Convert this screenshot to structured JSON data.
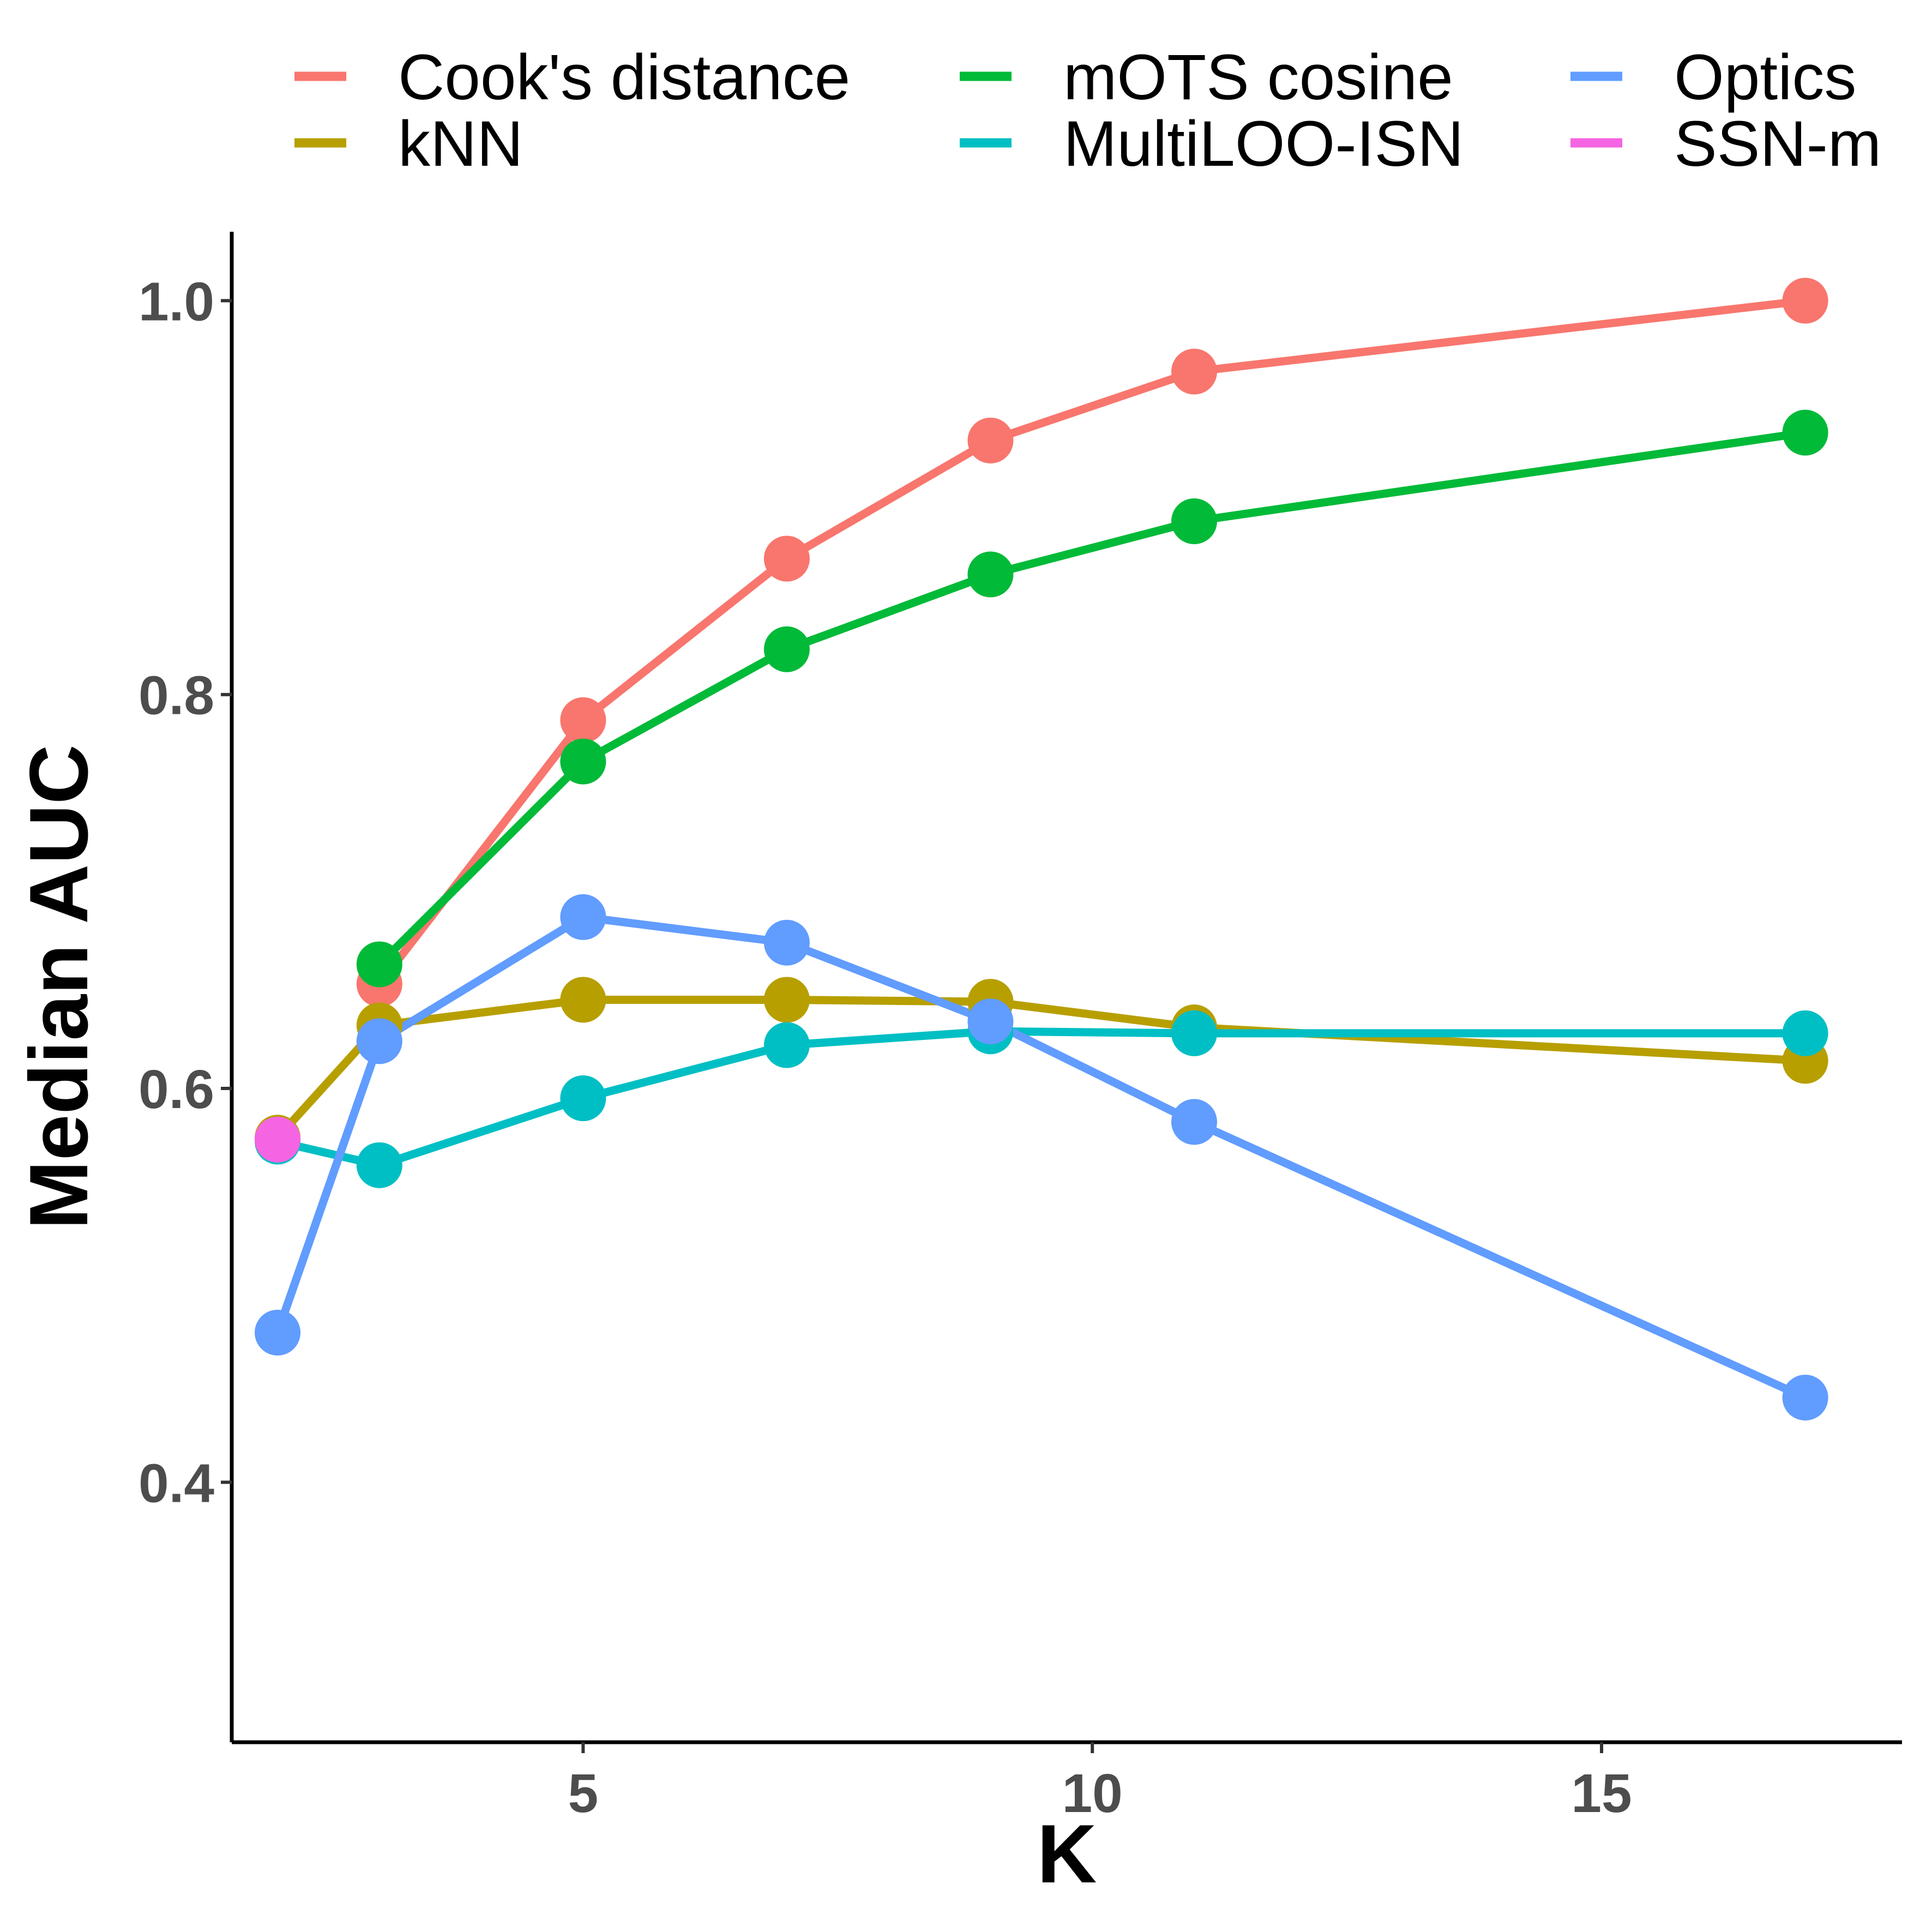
{
  "chart_data": {
    "type": "line",
    "title": "",
    "xlabel": "K",
    "ylabel": "Median AUC",
    "xlim": [
      1.55,
      17.95
    ],
    "ylim": [
      0.268,
      1.035
    ],
    "xticks": [
      5,
      10,
      15
    ],
    "xtick_labels": [
      "5",
      "10",
      "15"
    ],
    "yticks": [
      0.4,
      0.6,
      0.8,
      1.0
    ],
    "ytick_labels": [
      "0.4",
      "0.6",
      "0.8",
      "1.0"
    ],
    "grid": false,
    "legend_position": "top",
    "series": [
      {
        "name": "Cook's distance",
        "color": "#F8766D",
        "points": [
          [
            3,
            0.653
          ],
          [
            5,
            0.787
          ],
          [
            7,
            0.869
          ],
          [
            9,
            0.929
          ],
          [
            11,
            0.964
          ],
          [
            17,
            1.0
          ]
        ]
      },
      {
        "name": "kNN",
        "color": "#B79F00",
        "points": [
          [
            2,
            0.575
          ],
          [
            3,
            0.632
          ],
          [
            5,
            0.645
          ],
          [
            7,
            0.645
          ],
          [
            9,
            0.644
          ],
          [
            11,
            0.631
          ],
          [
            17,
            0.614
          ]
        ]
      },
      {
        "name": "mOTS cosine",
        "color": "#00BA38",
        "points": [
          [
            3,
            0.663
          ],
          [
            5,
            0.766
          ],
          [
            7,
            0.823
          ],
          [
            9,
            0.861
          ],
          [
            11,
            0.888
          ],
          [
            17,
            0.933
          ]
        ]
      },
      {
        "name": "MultiLOO-ISN",
        "color": "#00BFC4",
        "points": [
          [
            2,
            0.573
          ],
          [
            3,
            0.561
          ],
          [
            5,
            0.595
          ],
          [
            7,
            0.622
          ],
          [
            9,
            0.629
          ],
          [
            11,
            0.628
          ],
          [
            17,
            0.628
          ]
        ]
      },
      {
        "name": "Optics",
        "color": "#619CFF",
        "points": [
          [
            2,
            0.476
          ],
          [
            3,
            0.624
          ],
          [
            5,
            0.687
          ],
          [
            7,
            0.674
          ],
          [
            9,
            0.634
          ],
          [
            11,
            0.583
          ],
          [
            17,
            0.443
          ]
        ]
      },
      {
        "name": "SSN-m",
        "color": "#F564E3",
        "points": [
          [
            2,
            0.574
          ]
        ]
      }
    ]
  }
}
